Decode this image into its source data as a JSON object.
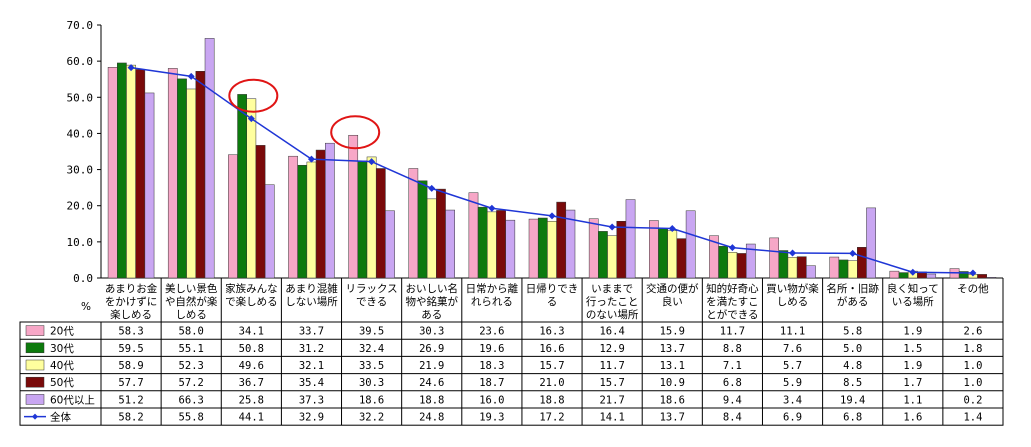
{
  "chart_data": {
    "type": "bar",
    "y_unit": "%",
    "ylim": [
      0,
      70
    ],
    "yticks": [
      "0.0",
      "10.0",
      "20.0",
      "30.0",
      "40.0",
      "50.0",
      "60.0",
      "70.0"
    ],
    "categories": [
      [
        "あまりお金",
        "をかけずに",
        "楽しめる"
      ],
      [
        "美しい景色",
        "や自然が楽",
        "しめる"
      ],
      [
        "家族みんな",
        "で楽しめる"
      ],
      [
        "あまり混雑",
        "しない場所"
      ],
      [
        "リラックス",
        "できる"
      ],
      [
        "おいしい名",
        "物や銘菓が",
        "ある"
      ],
      [
        "日常から離",
        "れられる"
      ],
      [
        "日帰りでき",
        "る"
      ],
      [
        "いままで",
        "行ったこと",
        "のない場所"
      ],
      [
        "交通の便が",
        "良い"
      ],
      [
        "知的好奇心",
        "を満たすこ",
        "とができる"
      ],
      [
        "買い物が楽",
        "しめる"
      ],
      [
        "名所・旧跡",
        "がある"
      ],
      [
        "良く知って",
        "いる場所"
      ],
      [
        "その他"
      ]
    ],
    "series": [
      {
        "name": "20代",
        "kind": "bar",
        "color": "#f7a7c7",
        "values": [
          "58.3",
          "58.0",
          "34.1",
          "33.7",
          "39.5",
          "30.3",
          "23.6",
          "16.3",
          "16.4",
          "15.9",
          "11.7",
          "11.1",
          "5.8",
          "1.9",
          "2.6"
        ]
      },
      {
        "name": "30代",
        "kind": "bar",
        "color": "#0d7a0d",
        "values": [
          "59.5",
          "55.1",
          "50.8",
          "31.2",
          "32.4",
          "26.9",
          "19.6",
          "16.6",
          "12.9",
          "13.7",
          "8.8",
          "7.6",
          "5.0",
          "1.5",
          "1.8"
        ]
      },
      {
        "name": "40代",
        "kind": "bar",
        "color": "#ffff9e",
        "values": [
          "58.9",
          "52.3",
          "49.6",
          "32.1",
          "33.5",
          "21.9",
          "18.3",
          "15.7",
          "11.7",
          "13.1",
          "7.1",
          "5.7",
          "4.8",
          "1.9",
          "1.0"
        ]
      },
      {
        "name": "50代",
        "kind": "bar",
        "color": "#7a0a0a",
        "values": [
          "57.7",
          "57.2",
          "36.7",
          "35.4",
          "30.3",
          "24.6",
          "18.7",
          "21.0",
          "15.7",
          "10.9",
          "6.8",
          "5.9",
          "8.5",
          "1.7",
          "1.0"
        ]
      },
      {
        "name": "60代以上",
        "kind": "bar",
        "color": "#c9a6f2",
        "values": [
          "51.2",
          "66.3",
          "25.8",
          "37.3",
          "18.6",
          "18.8",
          "16.0",
          "18.8",
          "21.7",
          "18.6",
          "9.4",
          "3.4",
          "19.4",
          "1.1",
          "0.2"
        ]
      },
      {
        "name": "全体",
        "kind": "line",
        "color": "#1f36d6",
        "values": [
          "58.2",
          "55.8",
          "44.1",
          "32.9",
          "32.2",
          "24.8",
          "19.3",
          "17.2",
          "14.1",
          "13.7",
          "8.4",
          "6.9",
          "6.8",
          "1.6",
          "1.4"
        ]
      }
    ],
    "highlights": [
      {
        "category_index": 2,
        "series": "40代",
        "note": "red ellipse"
      },
      {
        "category_index": 4,
        "series": "20代",
        "note": "red ellipse"
      }
    ],
    "grid": false,
    "legend": "table-left"
  }
}
